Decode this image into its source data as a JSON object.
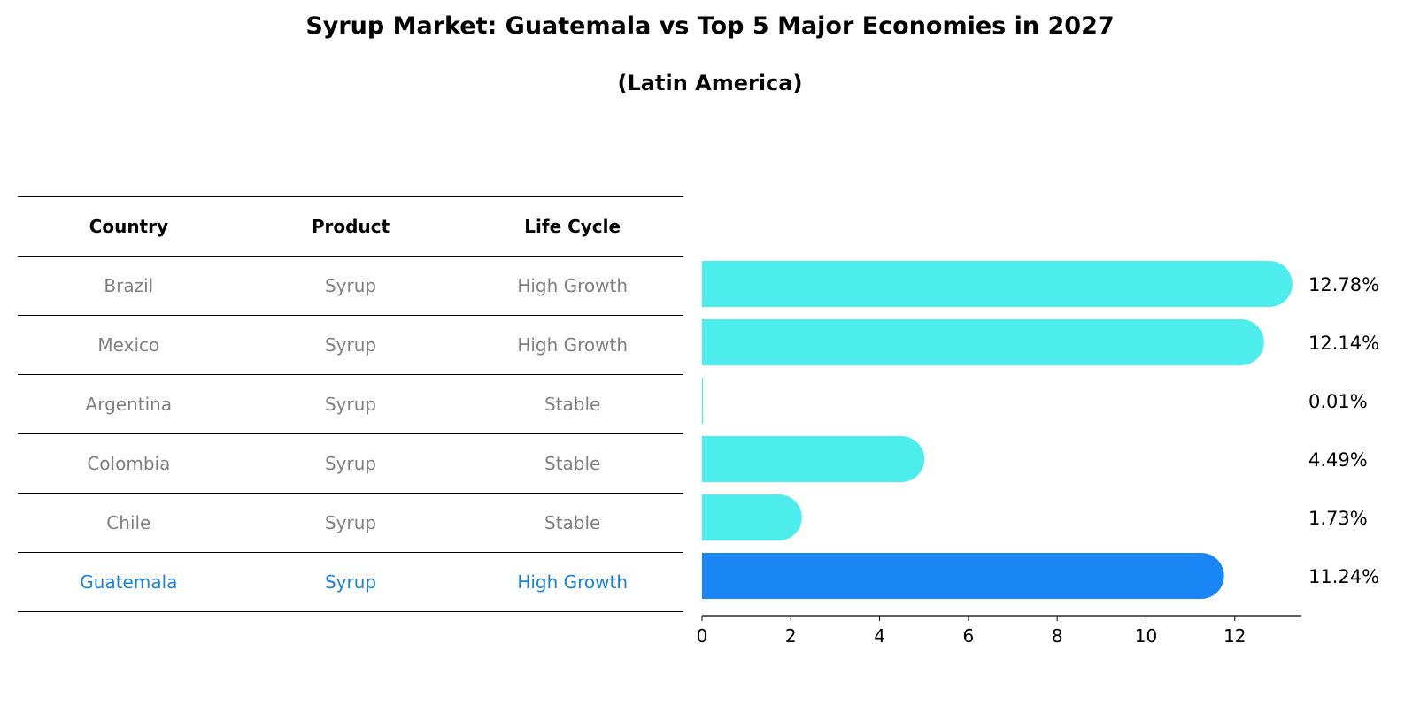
{
  "title": "Syrup Market: Guatemala vs Top 5 Major Economies in 2027",
  "subtitle": "(Latin America)",
  "table": {
    "headers": [
      "Country",
      "Product",
      "Life Cycle"
    ],
    "rows": [
      [
        "Brazil",
        "Syrup",
        "High Growth"
      ],
      [
        "Mexico",
        "Syrup",
        "High Growth"
      ],
      [
        "Argentina",
        "Syrup",
        "Stable"
      ],
      [
        "Colombia",
        "Syrup",
        "Stable"
      ],
      [
        "Chile",
        "Syrup",
        "Stable"
      ],
      [
        "Guatemala",
        "Syrup",
        "High Growth"
      ]
    ],
    "highlight_color": "#1a82d6",
    "text_color": "#808080"
  },
  "chart_data": {
    "type": "bar",
    "orientation": "horizontal",
    "categories": [
      "Brazil",
      "Mexico",
      "Argentina",
      "Colombia",
      "Chile",
      "Guatemala"
    ],
    "values": [
      12.78,
      12.14,
      0.01,
      4.49,
      1.73,
      11.24
    ],
    "value_labels": [
      "12.78%",
      "12.14%",
      "0.01%",
      "4.49%",
      "1.73%",
      "11.24%"
    ],
    "highlight": "Guatemala",
    "xlim": [
      0,
      13.5
    ],
    "xticks": [
      0,
      2,
      4,
      6,
      8,
      10,
      12
    ],
    "colors": {
      "default": "#4deded",
      "highlight": "#1a86f5"
    },
    "grid": false
  }
}
